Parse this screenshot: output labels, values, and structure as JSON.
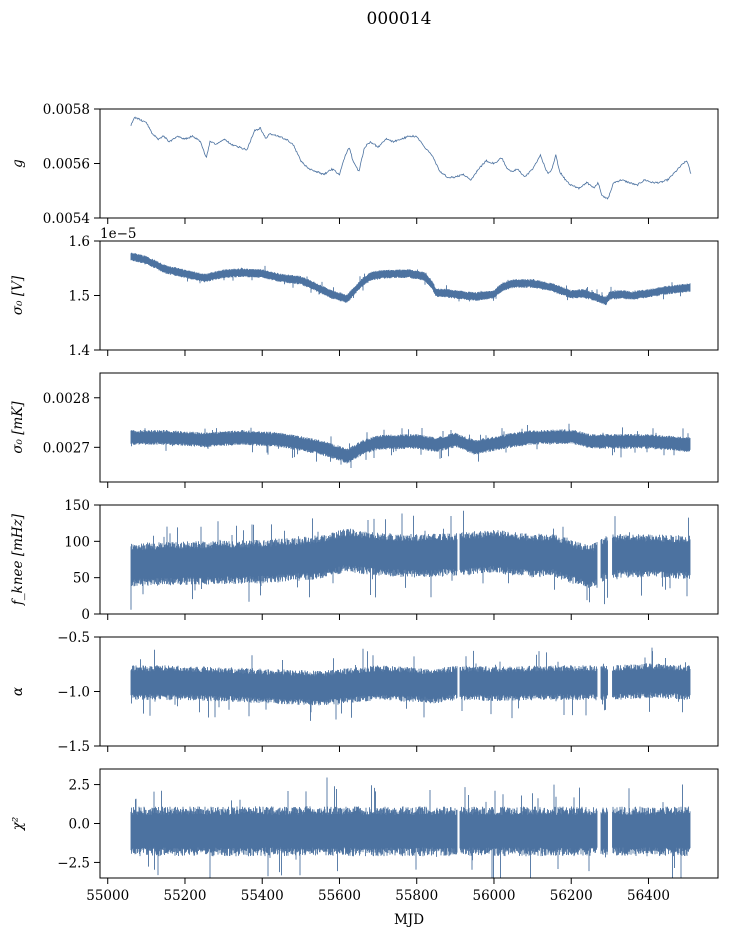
{
  "figure": {
    "title": "000014",
    "xlabel": "MJD",
    "x_ticks": [
      55000,
      55200,
      55400,
      55600,
      55800,
      56000,
      56200,
      56400
    ],
    "x_tick_labels": [
      "55000",
      "55200",
      "55400",
      "55600",
      "55800",
      "56000",
      "56200",
      "56400"
    ],
    "xlim": [
      54980,
      56580
    ],
    "line_color": "#4c72a0"
  },
  "chart_data": [
    {
      "type": "line",
      "id": "gain",
      "ylabel": "g",
      "ylim": [
        0.0054,
        0.0058
      ],
      "y_ticks": [
        0.0054,
        0.0056,
        0.0058
      ],
      "y_tick_labels": [
        "0.0054",
        "0.0056",
        "0.0058"
      ],
      "x": [
        55060,
        55070,
        55085,
        55100,
        55115,
        55130,
        55145,
        55160,
        55180,
        55200,
        55220,
        55240,
        55255,
        55265,
        55280,
        55300,
        55320,
        55340,
        55360,
        55380,
        55395,
        55410,
        55420,
        55440,
        55460,
        55480,
        55500,
        55520,
        55540,
        55560,
        55580,
        55600,
        55615,
        55625,
        55635,
        55650,
        55665,
        55680,
        55700,
        55720,
        55740,
        55760,
        55780,
        55800,
        55820,
        55840,
        55860,
        55880,
        55900,
        55920,
        55940,
        55960,
        55980,
        56000,
        56020,
        56035,
        56050,
        56060,
        56080,
        56100,
        56120,
        56140,
        56150,
        56160,
        56170,
        56185,
        56200,
        56220,
        56240,
        56260,
        56270,
        56280,
        56295,
        56310,
        56330,
        56350,
        56370,
        56390,
        56410,
        56430,
        56450,
        56470,
        56490,
        56500,
        56510
      ],
      "y": [
        0.00574,
        0.00577,
        0.00576,
        0.00575,
        0.00571,
        0.00569,
        0.0057,
        0.00568,
        0.0057,
        0.00569,
        0.0057,
        0.00568,
        0.00562,
        0.00568,
        0.00567,
        0.00569,
        0.00567,
        0.00566,
        0.00565,
        0.00572,
        0.00573,
        0.00569,
        0.00571,
        0.0057,
        0.00569,
        0.00567,
        0.00561,
        0.00558,
        0.00557,
        0.00556,
        0.00558,
        0.00556,
        0.00563,
        0.00566,
        0.00561,
        0.00557,
        0.00566,
        0.00568,
        0.00566,
        0.00569,
        0.00568,
        0.00569,
        0.0057,
        0.0057,
        0.00566,
        0.00563,
        0.00557,
        0.00555,
        0.00555,
        0.00556,
        0.00554,
        0.00558,
        0.00561,
        0.0056,
        0.00562,
        0.00558,
        0.00557,
        0.00558,
        0.00555,
        0.00558,
        0.00563,
        0.00556,
        0.00558,
        0.00563,
        0.00557,
        0.00554,
        0.00552,
        0.00551,
        0.00553,
        0.00551,
        0.00553,
        0.00548,
        0.00547,
        0.00553,
        0.00554,
        0.00553,
        0.00552,
        0.00554,
        0.00553,
        0.00553,
        0.00554,
        0.00557,
        0.0056,
        0.00561,
        0.00556
      ]
    },
    {
      "type": "line",
      "id": "sigma0-volts",
      "ylabel": "σ₀ [V]",
      "offset_text": "1e−5",
      "ylim": [
        1.4,
        1.6
      ],
      "y_ticks": [
        1.4,
        1.5,
        1.6
      ],
      "y_tick_labels": [
        "1.4",
        "1.5",
        "1.6"
      ],
      "x": [
        55060,
        55100,
        55150,
        55200,
        55250,
        55300,
        55350,
        55400,
        55450,
        55500,
        55550,
        55580,
        55600,
        55620,
        55640,
        55660,
        55680,
        55700,
        55740,
        55780,
        55820,
        55840,
        55850,
        55870,
        55900,
        55950,
        56000,
        56020,
        56050,
        56100,
        56150,
        56200,
        56230,
        56260,
        56290,
        56300,
        56330,
        56360,
        56400,
        56450,
        56510
      ],
      "y": [
        1.572,
        1.565,
        1.548,
        1.54,
        1.532,
        1.54,
        1.542,
        1.54,
        1.532,
        1.528,
        1.512,
        1.502,
        1.498,
        1.494,
        1.51,
        1.525,
        1.535,
        1.538,
        1.54,
        1.54,
        1.535,
        1.52,
        1.505,
        1.505,
        1.502,
        1.498,
        1.502,
        1.515,
        1.522,
        1.522,
        1.515,
        1.502,
        1.504,
        1.498,
        1.49,
        1.5,
        1.502,
        1.5,
        1.504,
        1.51,
        1.515
      ],
      "noise_band": 0.008
    },
    {
      "type": "line",
      "id": "sigma0-mk",
      "ylabel": "σ₀ [mK]",
      "ylim": [
        0.00263,
        0.00285
      ],
      "y_ticks": [
        0.0027,
        0.0028
      ],
      "y_tick_labels": [
        "0.0027",
        "0.0028"
      ],
      "x": [
        55060,
        55150,
        55250,
        55350,
        55450,
        55550,
        55600,
        55620,
        55660,
        55700,
        55800,
        55850,
        55900,
        55950,
        56050,
        56100,
        56200,
        56250,
        56300,
        56400,
        56510
      ],
      "y": [
        0.00272,
        0.00272,
        0.002715,
        0.00272,
        0.002715,
        0.0027,
        0.002688,
        0.002682,
        0.0027,
        0.00271,
        0.002712,
        0.002705,
        0.002715,
        0.0027,
        0.002715,
        0.00272,
        0.002722,
        0.002712,
        0.002712,
        0.002712,
        0.002705
      ],
      "noise_band": 1.5e-05
    },
    {
      "type": "line",
      "id": "fknee",
      "ylabel": "f_knee [mHz]",
      "ylim": [
        0,
        150
      ],
      "y_ticks": [
        0,
        50,
        100,
        150
      ],
      "y_tick_labels": [
        "0",
        "50",
        "100",
        "150"
      ],
      "x": [
        55060,
        55200,
        55400,
        55550,
        55620,
        55700,
        55800,
        55900,
        56000,
        56100,
        56150,
        56200,
        56250,
        56300,
        56400,
        56510
      ],
      "y": [
        68,
        70,
        72,
        78,
        88,
        82,
        80,
        82,
        86,
        80,
        82,
        72,
        65,
        80,
        80,
        78
      ],
      "noise_band": 30,
      "gaps": [
        [
          55905,
          55912
        ],
        [
          56268,
          56276
        ],
        [
          56295,
          56306
        ]
      ]
    },
    {
      "type": "line",
      "id": "alpha",
      "ylabel": "α",
      "ylim": [
        -1.5,
        -0.5
      ],
      "y_ticks": [
        -1.5,
        -1.0,
        -0.5
      ],
      "y_tick_labels": [
        "−1.5",
        "−1.0",
        "−0.5"
      ],
      "x": [
        55060,
        55200,
        55400,
        55550,
        55700,
        55850,
        55900,
        56000,
        56100,
        56200,
        56300,
        56400,
        56510
      ],
      "y": [
        -0.92,
        -0.92,
        -0.95,
        -0.97,
        -0.92,
        -0.95,
        -0.92,
        -0.93,
        -0.92,
        -0.92,
        -0.92,
        -0.9,
        -0.92
      ],
      "noise_band": 0.16,
      "gaps": [
        [
          55905,
          55912
        ],
        [
          56268,
          56276
        ],
        [
          56295,
          56306
        ]
      ]
    },
    {
      "type": "line",
      "id": "chi2",
      "ylabel": "χ²",
      "ylim": [
        -3.5,
        3.5
      ],
      "y_ticks": [
        -2.5,
        0.0,
        2.5
      ],
      "y_tick_labels": [
        "−2.5",
        "0.0",
        "2.5"
      ],
      "x": [
        55060,
        55300,
        55600,
        55900,
        56200,
        56510
      ],
      "y": [
        -0.5,
        -0.5,
        -0.5,
        -0.5,
        -0.5,
        -0.5
      ],
      "noise_band": 1.6,
      "gaps": [
        [
          55905,
          55912
        ],
        [
          56268,
          56276
        ],
        [
          56295,
          56306
        ]
      ]
    }
  ]
}
